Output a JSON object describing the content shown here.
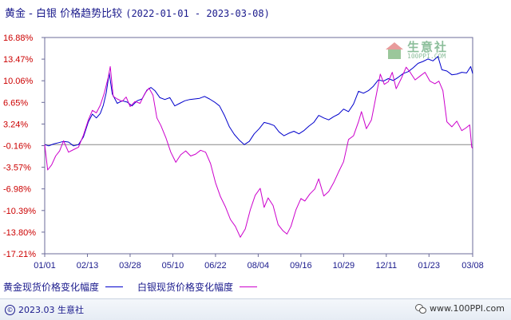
{
  "title": {
    "main": "黄金 - 白银 价格趋势比较",
    "date_range": "(2022-01-01 - 2023-03-08)"
  },
  "legend": [
    {
      "label": "黄金现货价格变化幅度",
      "color": "#0000cc"
    },
    {
      "label": "白银现货价格变化幅度",
      "color": "#cc00cc"
    }
  ],
  "footer": {
    "copyright": "2023.03 生意社",
    "site": "www.100PPI.com"
  },
  "watermark": {
    "name": "生意社",
    "url": "100PPI.COM"
  },
  "chart_data": {
    "type": "line",
    "title": "黄金 - 白银 价格趋势比较 (2022-01-01 - 2023-03-08)",
    "ylim": [
      -17.21,
      16.88
    ],
    "y_ticks": [
      "16.88%",
      "13.47%",
      "10.06%",
      "6.65%",
      "3.24%",
      "-0.16%",
      "-3.57%",
      "-6.98%",
      "-10.39%",
      "-13.80%",
      "-17.21%"
    ],
    "x_ticks": [
      "01/01",
      "02/13",
      "03/28",
      "05/10",
      "06/22",
      "08/04",
      "09/16",
      "10/29",
      "12/11",
      "01/23",
      "03/08"
    ],
    "x_tick_dates": [
      "2022-01-01",
      "2022-02-13",
      "2022-03-28",
      "2022-05-10",
      "2022-06-22",
      "2022-08-04",
      "2022-09-16",
      "2022-10-29",
      "2022-12-11",
      "2023-01-23",
      "2023-03-08"
    ],
    "x_start": "2022-01-01",
    "x_end": "2023-03-08",
    "grid": false,
    "series": [
      {
        "name": "黄金现货价格变化幅度",
        "color": "#0000cc",
        "points": [
          [
            "2022-01-01",
            0.0
          ],
          [
            "2022-01-05",
            -0.2
          ],
          [
            "2022-01-10",
            0.1
          ],
          [
            "2022-01-15",
            0.3
          ],
          [
            "2022-01-20",
            0.5
          ],
          [
            "2022-01-25",
            0.4
          ],
          [
            "2022-01-30",
            -0.2
          ],
          [
            "2022-02-04",
            0.0
          ],
          [
            "2022-02-09",
            1.2
          ],
          [
            "2022-02-14",
            3.6
          ],
          [
            "2022-02-18",
            4.8
          ],
          [
            "2022-02-22",
            4.2
          ],
          [
            "2022-02-26",
            4.9
          ],
          [
            "2022-03-01",
            6.2
          ],
          [
            "2022-03-04",
            8.2
          ],
          [
            "2022-03-07",
            11.3
          ],
          [
            "2022-03-10",
            8.0
          ],
          [
            "2022-03-15",
            6.5
          ],
          [
            "2022-03-20",
            6.9
          ],
          [
            "2022-03-25",
            6.7
          ],
          [
            "2022-03-30",
            6.1
          ],
          [
            "2022-04-04",
            6.9
          ],
          [
            "2022-04-09",
            7.2
          ],
          [
            "2022-04-14",
            8.6
          ],
          [
            "2022-04-18",
            9.0
          ],
          [
            "2022-04-22",
            8.5
          ],
          [
            "2022-04-27",
            7.4
          ],
          [
            "2022-05-02",
            7.1
          ],
          [
            "2022-05-07",
            7.4
          ],
          [
            "2022-05-12",
            6.1
          ],
          [
            "2022-05-17",
            6.5
          ],
          [
            "2022-05-22",
            6.9
          ],
          [
            "2022-05-27",
            7.1
          ],
          [
            "2022-06-01",
            7.2
          ],
          [
            "2022-06-06",
            7.3
          ],
          [
            "2022-06-11",
            7.6
          ],
          [
            "2022-06-16",
            7.2
          ],
          [
            "2022-06-21",
            6.7
          ],
          [
            "2022-06-26",
            6.1
          ],
          [
            "2022-07-01",
            4.6
          ],
          [
            "2022-07-06",
            2.8
          ],
          [
            "2022-07-11",
            1.6
          ],
          [
            "2022-07-16",
            0.7
          ],
          [
            "2022-07-21",
            0.0
          ],
          [
            "2022-07-26",
            0.5
          ],
          [
            "2022-07-31",
            1.7
          ],
          [
            "2022-08-05",
            2.5
          ],
          [
            "2022-08-10",
            3.5
          ],
          [
            "2022-08-15",
            3.3
          ],
          [
            "2022-08-20",
            3.0
          ],
          [
            "2022-08-25",
            2.0
          ],
          [
            "2022-08-30",
            1.4
          ],
          [
            "2022-09-04",
            1.8
          ],
          [
            "2022-09-09",
            2.1
          ],
          [
            "2022-09-14",
            1.7
          ],
          [
            "2022-09-19",
            2.2
          ],
          [
            "2022-09-24",
            2.9
          ],
          [
            "2022-09-29",
            3.5
          ],
          [
            "2022-10-04",
            4.6
          ],
          [
            "2022-10-09",
            4.2
          ],
          [
            "2022-10-14",
            3.9
          ],
          [
            "2022-10-19",
            4.4
          ],
          [
            "2022-10-24",
            4.8
          ],
          [
            "2022-10-29",
            5.6
          ],
          [
            "2022-11-03",
            5.2
          ],
          [
            "2022-11-08",
            6.4
          ],
          [
            "2022-11-13",
            8.4
          ],
          [
            "2022-11-18",
            8.1
          ],
          [
            "2022-11-23",
            8.5
          ],
          [
            "2022-11-28",
            9.2
          ],
          [
            "2022-12-03",
            10.2
          ],
          [
            "2022-12-08",
            10.0
          ],
          [
            "2022-12-13",
            10.4
          ],
          [
            "2022-12-18",
            10.1
          ],
          [
            "2022-12-23",
            10.6
          ],
          [
            "2022-12-28",
            11.2
          ],
          [
            "2023-01-02",
            11.5
          ],
          [
            "2023-01-07",
            12.1
          ],
          [
            "2023-01-12",
            12.8
          ],
          [
            "2023-01-17",
            13.1
          ],
          [
            "2023-01-22",
            13.5
          ],
          [
            "2023-01-27",
            13.2
          ],
          [
            "2023-02-01",
            13.9
          ],
          [
            "2023-02-05",
            11.8
          ],
          [
            "2023-02-10",
            11.6
          ],
          [
            "2023-02-15",
            11.0
          ],
          [
            "2023-02-20",
            11.1
          ],
          [
            "2023-02-25",
            11.4
          ],
          [
            "2023-03-02",
            11.3
          ],
          [
            "2023-03-06",
            12.3
          ],
          [
            "2023-03-08",
            11.2
          ]
        ]
      },
      {
        "name": "白银现货价格变化幅度",
        "color": "#cc00cc",
        "points": [
          [
            "2022-01-01",
            0.0
          ],
          [
            "2022-01-04",
            -4.0
          ],
          [
            "2022-01-08",
            -3.2
          ],
          [
            "2022-01-12",
            -1.8
          ],
          [
            "2022-01-16",
            -1.0
          ],
          [
            "2022-01-20",
            0.6
          ],
          [
            "2022-01-25",
            -1.2
          ],
          [
            "2022-01-30",
            -0.8
          ],
          [
            "2022-02-04",
            -0.4
          ],
          [
            "2022-02-09",
            1.5
          ],
          [
            "2022-02-14",
            3.9
          ],
          [
            "2022-02-18",
            5.4
          ],
          [
            "2022-02-22",
            5.0
          ],
          [
            "2022-02-26",
            6.2
          ],
          [
            "2022-03-02",
            8.1
          ],
          [
            "2022-03-06",
            10.6
          ],
          [
            "2022-03-08",
            12.3
          ],
          [
            "2022-03-11",
            7.6
          ],
          [
            "2022-03-15",
            7.2
          ],
          [
            "2022-03-20",
            6.8
          ],
          [
            "2022-03-24",
            7.5
          ],
          [
            "2022-03-28",
            6.0
          ],
          [
            "2022-04-02",
            6.8
          ],
          [
            "2022-04-07",
            6.5
          ],
          [
            "2022-04-12",
            8.1
          ],
          [
            "2022-04-16",
            8.9
          ],
          [
            "2022-04-20",
            7.8
          ],
          [
            "2022-04-24",
            4.2
          ],
          [
            "2022-04-28",
            3.0
          ],
          [
            "2022-05-03",
            1.1
          ],
          [
            "2022-05-08",
            -1.2
          ],
          [
            "2022-05-13",
            -2.8
          ],
          [
            "2022-05-18",
            -1.6
          ],
          [
            "2022-05-23",
            -1.0
          ],
          [
            "2022-05-28",
            -1.8
          ],
          [
            "2022-06-02",
            -1.5
          ],
          [
            "2022-06-07",
            -0.9
          ],
          [
            "2022-06-12",
            -1.2
          ],
          [
            "2022-06-17",
            -3.0
          ],
          [
            "2022-06-22",
            -6.0
          ],
          [
            "2022-06-27",
            -8.2
          ],
          [
            "2022-07-02",
            -9.8
          ],
          [
            "2022-07-07",
            -11.8
          ],
          [
            "2022-07-12",
            -12.9
          ],
          [
            "2022-07-17",
            -14.6
          ],
          [
            "2022-07-22",
            -13.3
          ],
          [
            "2022-07-27",
            -10.3
          ],
          [
            "2022-08-01",
            -8.0
          ],
          [
            "2022-08-06",
            -6.9
          ],
          [
            "2022-08-10",
            -9.9
          ],
          [
            "2022-08-14",
            -8.4
          ],
          [
            "2022-08-19",
            -9.6
          ],
          [
            "2022-08-24",
            -12.6
          ],
          [
            "2022-08-29",
            -13.6
          ],
          [
            "2022-09-02",
            -14.1
          ],
          [
            "2022-09-06",
            -12.9
          ],
          [
            "2022-09-11",
            -10.3
          ],
          [
            "2022-09-16",
            -8.5
          ],
          [
            "2022-09-20",
            -8.9
          ],
          [
            "2022-09-25",
            -7.8
          ],
          [
            "2022-09-30",
            -7.0
          ],
          [
            "2022-10-04",
            -5.4
          ],
          [
            "2022-10-09",
            -8.1
          ],
          [
            "2022-10-14",
            -7.4
          ],
          [
            "2022-10-19",
            -6.0
          ],
          [
            "2022-10-24",
            -4.3
          ],
          [
            "2022-10-29",
            -2.7
          ],
          [
            "2022-11-03",
            0.8
          ],
          [
            "2022-11-08",
            1.4
          ],
          [
            "2022-11-13",
            3.6
          ],
          [
            "2022-11-16",
            5.2
          ],
          [
            "2022-11-21",
            2.5
          ],
          [
            "2022-11-26",
            3.9
          ],
          [
            "2022-12-01",
            7.9
          ],
          [
            "2022-12-05",
            11.1
          ],
          [
            "2022-12-09",
            9.5
          ],
          [
            "2022-12-13",
            9.9
          ],
          [
            "2022-12-17",
            11.4
          ],
          [
            "2022-12-21",
            8.8
          ],
          [
            "2022-12-26",
            10.4
          ],
          [
            "2022-12-31",
            12.2
          ],
          [
            "2023-01-04",
            11.4
          ],
          [
            "2023-01-09",
            10.2
          ],
          [
            "2023-01-14",
            10.8
          ],
          [
            "2023-01-19",
            11.4
          ],
          [
            "2023-01-24",
            10.0
          ],
          [
            "2023-01-29",
            9.6
          ],
          [
            "2023-02-02",
            10.0
          ],
          [
            "2023-02-06",
            8.5
          ],
          [
            "2023-02-10",
            3.6
          ],
          [
            "2023-02-15",
            2.8
          ],
          [
            "2023-02-20",
            3.7
          ],
          [
            "2023-02-25",
            2.2
          ],
          [
            "2023-03-01",
            2.6
          ],
          [
            "2023-03-05",
            3.1
          ],
          [
            "2023-03-07",
            -0.4
          ],
          [
            "2023-03-08",
            -0.6
          ]
        ]
      }
    ]
  }
}
